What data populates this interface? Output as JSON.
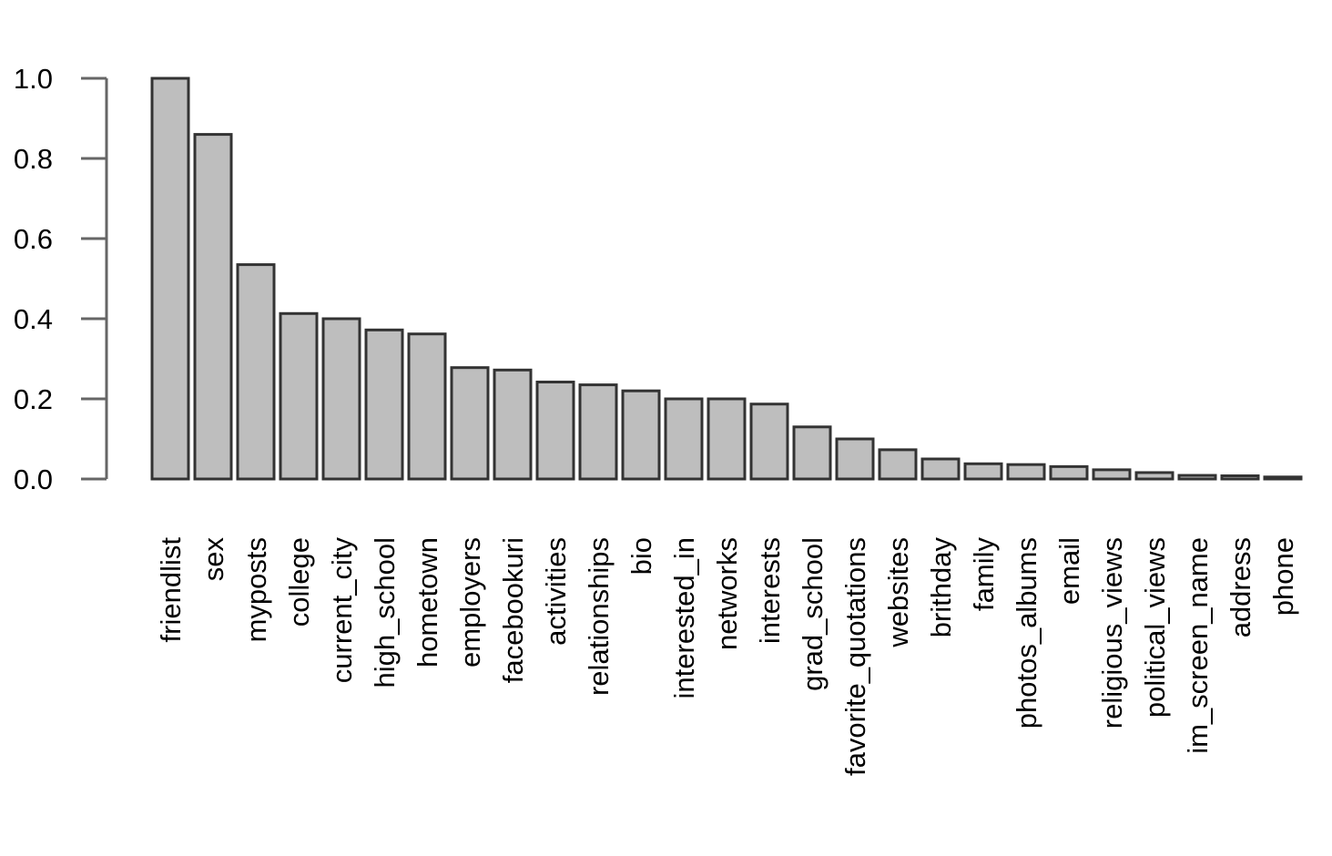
{
  "chart_data": {
    "type": "bar",
    "title": "",
    "xlabel": "",
    "ylabel": "",
    "ylim": [
      0,
      1
    ],
    "yticks": [
      0.0,
      0.2,
      0.4,
      0.6,
      0.8,
      1.0
    ],
    "ytick_labels": [
      "0.0",
      "0.2",
      "0.4",
      "0.6",
      "0.8",
      "1.0"
    ],
    "grid": false,
    "legend": "none",
    "bar_color": "#bebebe",
    "bar_edge_color": "#333333",
    "categories": [
      "friendlist",
      "sex",
      "myposts",
      "college",
      "current_city",
      "high_school",
      "hometown",
      "employers",
      "facebookuri",
      "activities",
      "relationships",
      "bio",
      "interested_in",
      "networks",
      "interests",
      "grad_school",
      "favorite_quotations",
      "websites",
      "brithday",
      "family",
      "photos_albums",
      "email",
      "religious_views",
      "political_views",
      "im_screen_name",
      "address",
      "phone"
    ],
    "values": [
      1.0,
      0.86,
      0.535,
      0.413,
      0.4,
      0.372,
      0.362,
      0.278,
      0.272,
      0.242,
      0.235,
      0.22,
      0.2,
      0.2,
      0.187,
      0.13,
      0.1,
      0.073,
      0.05,
      0.038,
      0.036,
      0.031,
      0.023,
      0.016,
      0.009,
      0.008,
      0.005
    ]
  }
}
